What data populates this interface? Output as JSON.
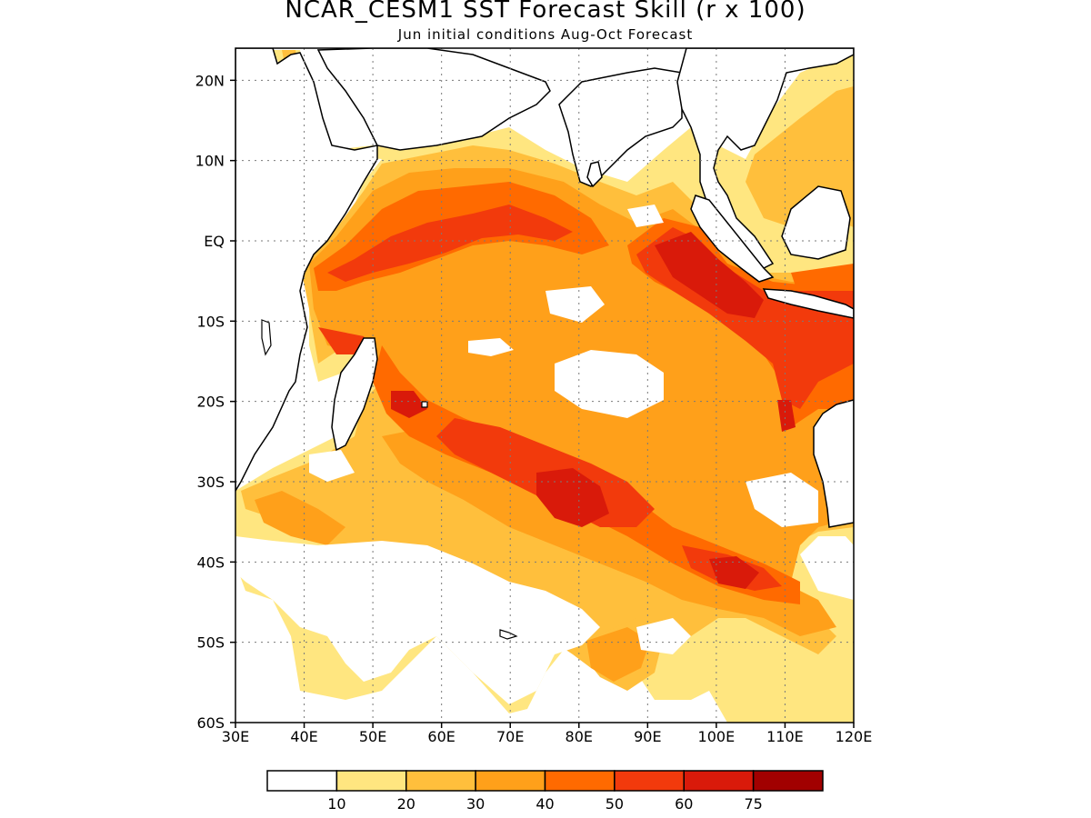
{
  "title": "NCAR_CESM1 SST Forecast Skill (r x 100)",
  "subtitle": "Jun initial conditions  Aug-Oct Forecast",
  "colors": {
    "land_fill": "#ffffff",
    "coast": "#000000",
    "levels": [
      "#ffffff",
      "#ffe680",
      "#ffbf3c",
      "#ffa01a",
      "#ff6a00",
      "#f23a0c",
      "#d91a0a",
      "#a10000"
    ]
  },
  "map": {
    "lon_range": [
      30,
      120
    ],
    "lat_range": [
      -60,
      24
    ],
    "lon_ticks": [
      "30E",
      "40E",
      "50E",
      "60E",
      "70E",
      "80E",
      "90E",
      "100E",
      "110E",
      "120E"
    ],
    "lat_ticks": [
      "20N",
      "10N",
      "EQ",
      "10S",
      "20S",
      "30S",
      "40S",
      "50S",
      "60S"
    ],
    "grid": "dotted",
    "variable": "SST forecast skill (r x 100)"
  },
  "colorbar": {
    "labels": [
      "10",
      "20",
      "30",
      "40",
      "50",
      "60",
      "75"
    ]
  }
}
